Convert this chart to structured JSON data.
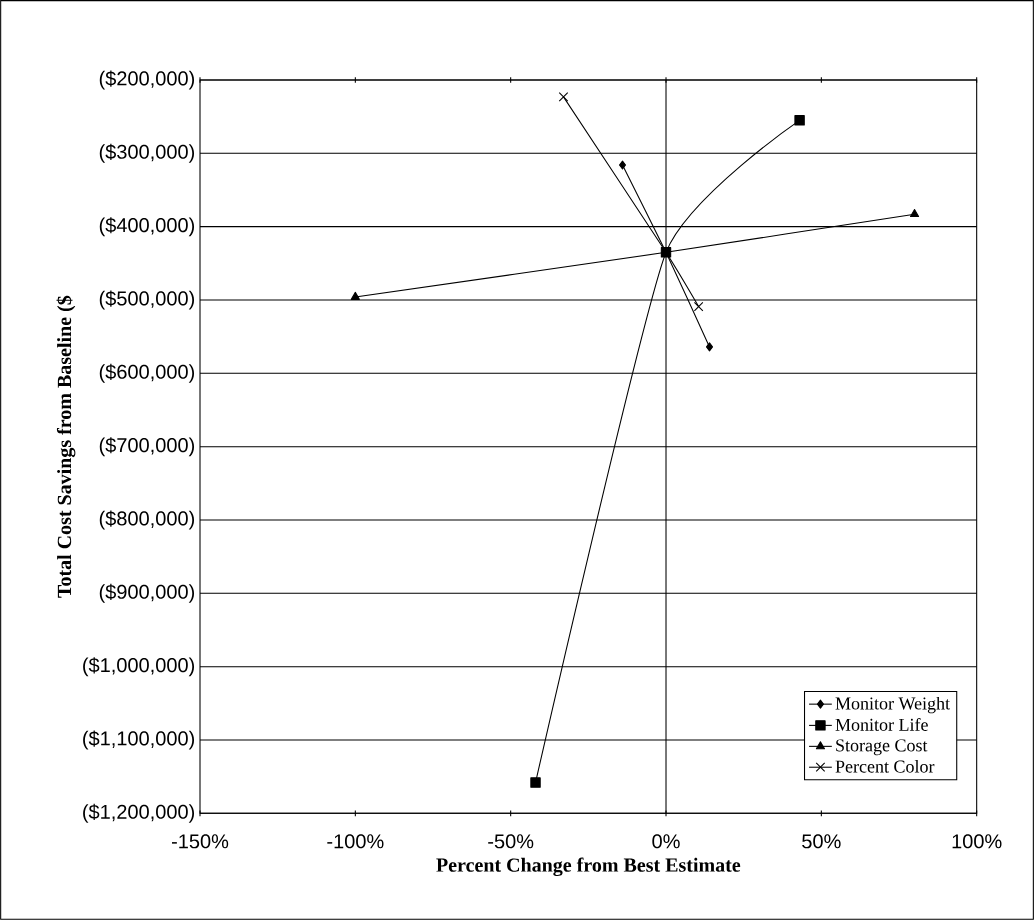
{
  "chart_data": {
    "type": "line",
    "xlabel": "Percent Change from Best Estimate",
    "ylabel": "Total Cost Savings from Baseline ($",
    "xlim": [
      -150,
      100
    ],
    "ylim": [
      -1200000,
      -200000
    ],
    "xticks": [
      {
        "value": -150,
        "label": "-150%"
      },
      {
        "value": -100,
        "label": "-100%"
      },
      {
        "value": -50,
        "label": "-50%"
      },
      {
        "value": 0,
        "label": "0%"
      },
      {
        "value": 50,
        "label": "50%"
      },
      {
        "value": 100,
        "label": "100%"
      }
    ],
    "yticks": [
      {
        "value": -200000,
        "label": "($200,000)"
      },
      {
        "value": -300000,
        "label": "($300,000)"
      },
      {
        "value": -400000,
        "label": "($400,000)"
      },
      {
        "value": -500000,
        "label": "($500,000)"
      },
      {
        "value": -600000,
        "label": "($600,000)"
      },
      {
        "value": -700000,
        "label": "($700,000)"
      },
      {
        "value": -800000,
        "label": "($800,000)"
      },
      {
        "value": -900000,
        "label": "($900,000)"
      },
      {
        "value": -1000000,
        "label": "($1,000,000)"
      },
      {
        "value": -1100000,
        "label": "($1,100,000)"
      },
      {
        "value": -1200000,
        "label": "($1,200,000)"
      }
    ],
    "grid": "y",
    "ref_lines": [
      {
        "axis": "x",
        "value": 0,
        "color": "#000000",
        "line_style": "solid"
      }
    ],
    "legend": "bottom right",
    "line_style": "solid",
    "series": [
      {
        "name": "Monitor Weight",
        "color": "#000000",
        "marker": "diamond",
        "x": [
          -14,
          0,
          14
        ],
        "values": [
          -316000,
          -435000,
          -564000
        ]
      },
      {
        "name": "Monitor Life",
        "color": "#000000",
        "marker": "square",
        "x": [
          -42,
          0,
          43
        ],
        "values": [
          -1158000,
          -435000,
          -255000
        ]
      },
      {
        "name": "Storage Cost",
        "color": "#000000",
        "marker": "triangle",
        "x": [
          -100,
          0,
          80
        ],
        "values": [
          -496000,
          -435000,
          -383000
        ]
      },
      {
        "name": "Percent Color",
        "color": "#000000",
        "marker": "cross",
        "x": [
          -33,
          0,
          10.5
        ],
        "values": [
          -223000,
          -435000,
          -509000
        ]
      }
    ]
  }
}
